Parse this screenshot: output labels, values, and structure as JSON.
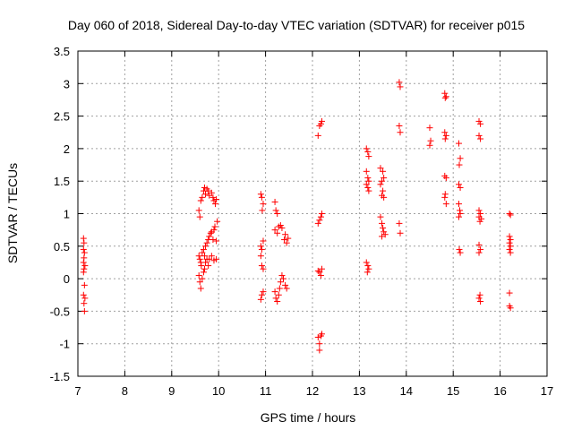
{
  "chart_data": {
    "type": "scatter",
    "title": "Day 060 of 2018, Sidereal Day-to-day VTEC variation (SDTVAR) for receiver p015",
    "xlabel": "GPS time / hours",
    "ylabel": "SDTVAR / TECUs",
    "xlim": [
      7,
      17
    ],
    "ylim": [
      -1.5,
      3.5
    ],
    "xticks": [
      "7",
      "8",
      "9",
      "10",
      "11",
      "12",
      "13",
      "14",
      "15",
      "16",
      "17"
    ],
    "yticks": [
      "-1.5",
      "-1",
      "-0.5",
      "0",
      "0.5",
      "1",
      "1.5",
      "2",
      "2.5",
      "3",
      "3.5"
    ],
    "grid": true,
    "marker": "+",
    "color": "#ff0000",
    "series": [
      {
        "name": "SDTVAR",
        "points": [
          [
            7.12,
            0.62
          ],
          [
            7.13,
            0.55
          ],
          [
            7.12,
            0.45
          ],
          [
            7.14,
            0.4
          ],
          [
            7.13,
            0.32
          ],
          [
            7.12,
            0.25
          ],
          [
            7.15,
            0.2
          ],
          [
            7.13,
            0.15
          ],
          [
            7.12,
            0.1
          ],
          [
            7.14,
            -0.1
          ],
          [
            7.12,
            -0.25
          ],
          [
            7.15,
            -0.3
          ],
          [
            7.13,
            -0.38
          ],
          [
            7.14,
            -0.5
          ],
          [
            9.58,
            1.05
          ],
          [
            9.6,
            0.95
          ],
          [
            9.62,
            1.2
          ],
          [
            9.65,
            1.25
          ],
          [
            9.68,
            1.35
          ],
          [
            9.7,
            1.4
          ],
          [
            9.72,
            1.3
          ],
          [
            9.75,
            1.38
          ],
          [
            9.78,
            1.35
          ],
          [
            9.8,
            1.28
          ],
          [
            9.85,
            1.32
          ],
          [
            9.88,
            1.25
          ],
          [
            9.9,
            1.2
          ],
          [
            9.93,
            1.15
          ],
          [
            9.95,
            1.22
          ],
          [
            9.58,
            0.35
          ],
          [
            9.6,
            0.3
          ],
          [
            9.62,
            0.25
          ],
          [
            9.63,
            0.2
          ],
          [
            9.65,
            0.4
          ],
          [
            9.68,
            0.45
          ],
          [
            9.7,
            0.35
          ],
          [
            9.72,
            0.5
          ],
          [
            9.75,
            0.55
          ],
          [
            9.78,
            0.6
          ],
          [
            9.8,
            0.65
          ],
          [
            9.83,
            0.7
          ],
          [
            9.85,
            0.72
          ],
          [
            9.88,
            0.6
          ],
          [
            9.9,
            0.75
          ],
          [
            9.92,
            0.8
          ],
          [
            9.95,
            0.58
          ],
          [
            9.97,
            0.88
          ],
          [
            9.58,
            0.05
          ],
          [
            9.6,
            -0.05
          ],
          [
            9.62,
            -0.15
          ],
          [
            9.65,
            0.0
          ],
          [
            9.68,
            0.1
          ],
          [
            9.7,
            0.15
          ],
          [
            9.72,
            0.25
          ],
          [
            9.75,
            0.3
          ],
          [
            9.78,
            0.2
          ],
          [
            9.8,
            0.3
          ],
          [
            9.85,
            0.35
          ],
          [
            9.9,
            0.28
          ],
          [
            9.95,
            0.3
          ],
          [
            10.9,
            1.3
          ],
          [
            10.92,
            1.25
          ],
          [
            10.95,
            1.15
          ],
          [
            10.93,
            1.05
          ],
          [
            10.9,
            0.5
          ],
          [
            10.92,
            0.45
          ],
          [
            10.95,
            0.58
          ],
          [
            10.9,
            0.35
          ],
          [
            10.92,
            0.2
          ],
          [
            10.95,
            0.15
          ],
          [
            10.92,
            -0.25
          ],
          [
            10.9,
            -0.32
          ],
          [
            10.95,
            -0.2
          ],
          [
            11.2,
            1.18
          ],
          [
            11.22,
            1.05
          ],
          [
            11.25,
            1.0
          ],
          [
            11.2,
            0.75
          ],
          [
            11.25,
            0.7
          ],
          [
            11.28,
            0.8
          ],
          [
            11.32,
            0.82
          ],
          [
            11.35,
            0.78
          ],
          [
            11.2,
            -0.2
          ],
          [
            11.22,
            -0.3
          ],
          [
            11.25,
            -0.35
          ],
          [
            11.28,
            -0.25
          ],
          [
            11.3,
            -0.15
          ],
          [
            11.32,
            -0.05
          ],
          [
            11.35,
            0.05
          ],
          [
            11.38,
            0.0
          ],
          [
            11.42,
            -0.1
          ],
          [
            11.45,
            -0.15
          ],
          [
            11.4,
            0.6
          ],
          [
            11.45,
            0.55
          ],
          [
            11.48,
            0.62
          ],
          [
            11.42,
            0.68
          ],
          [
            12.12,
            2.2
          ],
          [
            12.15,
            2.35
          ],
          [
            12.18,
            2.38
          ],
          [
            12.2,
            2.42
          ],
          [
            12.12,
            0.85
          ],
          [
            12.15,
            0.9
          ],
          [
            12.18,
            0.95
          ],
          [
            12.2,
            1.0
          ],
          [
            12.12,
            0.12
          ],
          [
            12.15,
            0.1
          ],
          [
            12.18,
            0.05
          ],
          [
            12.2,
            0.15
          ],
          [
            12.12,
            -0.9
          ],
          [
            12.15,
            -1.0
          ],
          [
            12.18,
            -0.88
          ],
          [
            12.2,
            -0.85
          ],
          [
            12.15,
            -1.1
          ],
          [
            13.15,
            2.0
          ],
          [
            13.18,
            1.95
          ],
          [
            13.2,
            1.88
          ],
          [
            13.15,
            1.65
          ],
          [
            13.18,
            1.55
          ],
          [
            13.2,
            1.5
          ],
          [
            13.15,
            1.45
          ],
          [
            13.18,
            1.4
          ],
          [
            13.2,
            1.35
          ],
          [
            13.15,
            0.25
          ],
          [
            13.18,
            0.2
          ],
          [
            13.2,
            0.15
          ],
          [
            13.17,
            0.1
          ],
          [
            13.45,
            1.7
          ],
          [
            13.5,
            1.65
          ],
          [
            13.52,
            1.55
          ],
          [
            13.48,
            1.5
          ],
          [
            13.45,
            1.45
          ],
          [
            13.5,
            1.35
          ],
          [
            13.48,
            1.28
          ],
          [
            13.52,
            1.25
          ],
          [
            13.45,
            0.95
          ],
          [
            13.48,
            0.85
          ],
          [
            13.5,
            0.78
          ],
          [
            13.52,
            0.72
          ],
          [
            13.55,
            0.68
          ],
          [
            13.48,
            0.65
          ],
          [
            13.85,
            3.02
          ],
          [
            13.87,
            2.95
          ],
          [
            13.85,
            2.35
          ],
          [
            13.87,
            2.25
          ],
          [
            13.85,
            0.85
          ],
          [
            13.87,
            0.7
          ],
          [
            14.5,
            2.32
          ],
          [
            14.52,
            2.12
          ],
          [
            14.5,
            2.05
          ],
          [
            14.82,
            2.85
          ],
          [
            14.85,
            2.8
          ],
          [
            14.83,
            2.78
          ],
          [
            14.82,
            2.25
          ],
          [
            14.85,
            2.2
          ],
          [
            14.83,
            2.15
          ],
          [
            14.82,
            1.58
          ],
          [
            14.85,
            1.55
          ],
          [
            14.83,
            1.3
          ],
          [
            14.82,
            1.25
          ],
          [
            14.85,
            1.15
          ],
          [
            15.12,
            2.08
          ],
          [
            15.15,
            1.85
          ],
          [
            15.13,
            1.75
          ],
          [
            15.12,
            1.45
          ],
          [
            15.15,
            1.4
          ],
          [
            15.12,
            1.15
          ],
          [
            15.14,
            1.05
          ],
          [
            15.15,
            1.0
          ],
          [
            15.12,
            0.95
          ],
          [
            15.13,
            0.45
          ],
          [
            15.15,
            0.4
          ],
          [
            15.55,
            2.42
          ],
          [
            15.58,
            2.38
          ],
          [
            15.55,
            2.2
          ],
          [
            15.58,
            2.15
          ],
          [
            15.55,
            1.05
          ],
          [
            15.58,
            1.0
          ],
          [
            15.55,
            0.95
          ],
          [
            15.6,
            0.92
          ],
          [
            15.57,
            0.88
          ],
          [
            15.55,
            0.52
          ],
          [
            15.58,
            0.45
          ],
          [
            15.55,
            0.4
          ],
          [
            15.57,
            -0.25
          ],
          [
            15.55,
            -0.3
          ],
          [
            15.58,
            -0.35
          ],
          [
            16.2,
            1.0
          ],
          [
            16.22,
            0.98
          ],
          [
            16.2,
            0.65
          ],
          [
            16.22,
            0.6
          ],
          [
            16.2,
            0.55
          ],
          [
            16.22,
            0.5
          ],
          [
            16.2,
            0.45
          ],
          [
            16.22,
            0.4
          ],
          [
            16.2,
            -0.22
          ],
          [
            16.2,
            -0.42
          ],
          [
            16.22,
            -0.45
          ]
        ]
      }
    ]
  }
}
